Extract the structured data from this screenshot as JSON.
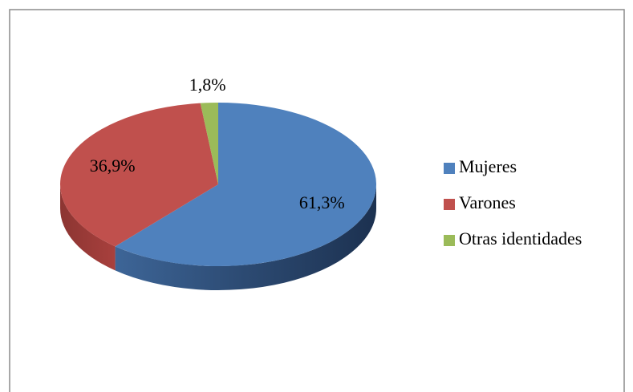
{
  "chart_data": {
    "type": "pie",
    "categories": [
      "Mujeres",
      "Varones",
      "Otras identidades"
    ],
    "values": [
      61.3,
      36.9,
      1.8
    ],
    "value_labels": [
      "61,3%",
      "36,9%",
      "1,8%"
    ],
    "colors": [
      "#4f81bd",
      "#c0504d",
      "#9bbb59"
    ],
    "legend": "right"
  }
}
